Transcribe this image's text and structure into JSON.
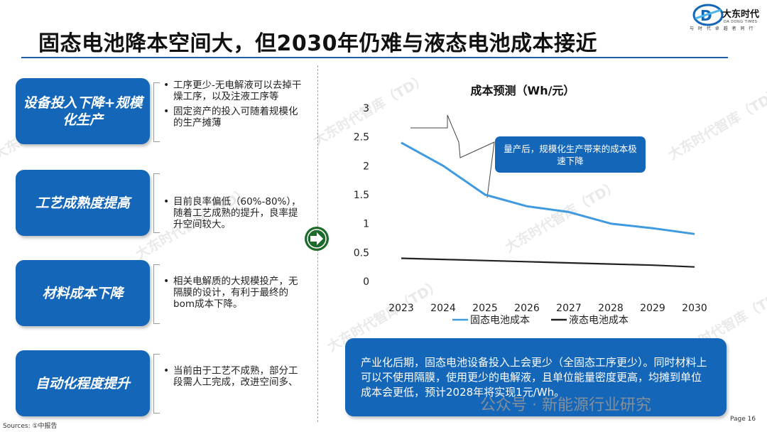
{
  "header": {
    "title": "固态电池降本空间大，但2030年仍难与液态电池成本接近",
    "logo_name": "大东时代",
    "logo_sub": "DA DONG TIMES",
    "logo_tagline": "与 时 代 卓 越 者 同 行"
  },
  "left_panel": {
    "items": [
      {
        "label": "设备投入下降+规模化生产",
        "bullets": [
          "工序更少-无电解液可以去掉干燥工序，以及注液工序等",
          "固定资产的投入可随着规模化的生产摊薄"
        ]
      },
      {
        "label": "工艺成熟度提高",
        "bullets": [
          "目前良率偏低（60%-80%），随着工艺成熟的提升，良率提升空间较大。"
        ]
      },
      {
        "label": "材料成本下降",
        "bullets": [
          "相关电解质的大规模投产，无隔膜的设计，有利于最终的bom成本下降。"
        ]
      },
      {
        "label": "自动化程度提升",
        "bullets": [
          "当前由于工艺不成熟，部分工段需人工完成，改进空间多、"
        ]
      }
    ]
  },
  "chart_data": {
    "type": "line",
    "title": "成本预测（Wh/元）",
    "categories": [
      "2023",
      "2024",
      "2025",
      "2026",
      "2027",
      "2028",
      "2029",
      "2030"
    ],
    "ylim": [
      0,
      3
    ],
    "yticks": [
      "0",
      "0.5",
      "1",
      "1.5",
      "2",
      "2.5",
      "3"
    ],
    "grid": false,
    "legend_position": "bottom",
    "series": [
      {
        "name": "固态电池成本",
        "color": "#3f9ae0",
        "values": [
          2.4,
          2.0,
          1.5,
          1.3,
          1.2,
          1.0,
          0.92,
          0.82
        ]
      },
      {
        "name": "液态电池成本",
        "color": "#222222",
        "values": [
          0.4,
          0.38,
          0.36,
          0.34,
          0.32,
          0.3,
          0.28,
          0.25
        ]
      }
    ],
    "annotation": "量产后，规模化生产带来的成本极速下降"
  },
  "summary": "产业化后期，固态电池设备投入上会更少（全固态工序更少）。同时材料上可以不使用隔膜，使用更少的电解液，且单位能量密度更高，均摊到单位成本会更低，预计2028年将实现1元/Wh。",
  "footer": {
    "source": "Sources: ①中报告",
    "page": "Page 16",
    "wechat_overlay": "公众号 · 新能源行业研究"
  },
  "watermark_text": "大东时代智库（TD）",
  "colors": {
    "accent": "#1466b8",
    "rule": "#1f5fa8"
  },
  "icons": {
    "arrow": "arrow-right-icon"
  }
}
